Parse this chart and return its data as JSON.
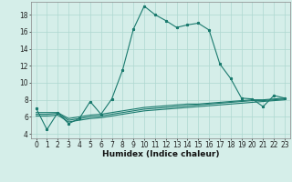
{
  "title": "",
  "xlabel": "Humidex (Indice chaleur)",
  "xlim": [
    -0.5,
    23.5
  ],
  "ylim": [
    3.5,
    19.5
  ],
  "xticks": [
    0,
    1,
    2,
    3,
    4,
    5,
    6,
    7,
    8,
    9,
    10,
    11,
    12,
    13,
    14,
    15,
    16,
    17,
    18,
    19,
    20,
    21,
    22,
    23
  ],
  "yticks": [
    4,
    6,
    8,
    10,
    12,
    14,
    16,
    18
  ],
  "bg_color": "#d5eee9",
  "grid_color": "#aed8d0",
  "line_color": "#1a7a6e",
  "line1_x": [
    0,
    1,
    2,
    3,
    4,
    5,
    6,
    7,
    8,
    9,
    10,
    11,
    12,
    13,
    14,
    15,
    16,
    17,
    18,
    19,
    20,
    21,
    22,
    23
  ],
  "line1_y": [
    7.0,
    4.5,
    6.5,
    5.2,
    5.8,
    7.8,
    6.3,
    8.1,
    11.5,
    16.3,
    19.0,
    18.0,
    17.3,
    16.5,
    16.8,
    17.0,
    16.2,
    12.2,
    10.5,
    8.2,
    8.1,
    7.2,
    8.5,
    8.2
  ],
  "line2_x": [
    0,
    1,
    2,
    3,
    4,
    5,
    6,
    7,
    8,
    9,
    10,
    11,
    12,
    13,
    14,
    15,
    16,
    17,
    18,
    19,
    20,
    21,
    22,
    23
  ],
  "line2_y": [
    6.5,
    6.5,
    6.5,
    5.8,
    6.0,
    6.2,
    6.3,
    6.5,
    6.7,
    6.9,
    7.1,
    7.2,
    7.3,
    7.4,
    7.5,
    7.5,
    7.6,
    7.7,
    7.8,
    7.9,
    8.0,
    8.0,
    8.1,
    8.2
  ],
  "line3_x": [
    0,
    1,
    2,
    3,
    4,
    5,
    6,
    7,
    8,
    9,
    10,
    11,
    12,
    13,
    14,
    15,
    16,
    17,
    18,
    19,
    20,
    21,
    22,
    23
  ],
  "line3_y": [
    6.3,
    6.3,
    6.4,
    5.6,
    5.8,
    6.0,
    6.1,
    6.3,
    6.5,
    6.7,
    6.9,
    7.0,
    7.1,
    7.2,
    7.3,
    7.4,
    7.5,
    7.6,
    7.7,
    7.8,
    7.9,
    7.9,
    8.0,
    8.1
  ],
  "line4_x": [
    0,
    1,
    2,
    3,
    4,
    5,
    6,
    7,
    8,
    9,
    10,
    11,
    12,
    13,
    14,
    15,
    16,
    17,
    18,
    19,
    20,
    21,
    22,
    23
  ],
  "line4_y": [
    6.1,
    6.1,
    6.2,
    5.4,
    5.6,
    5.8,
    5.9,
    6.1,
    6.3,
    6.5,
    6.7,
    6.8,
    6.9,
    7.0,
    7.1,
    7.2,
    7.3,
    7.4,
    7.5,
    7.6,
    7.7,
    7.8,
    7.9,
    8.0
  ],
  "marker_size": 2.0,
  "line_width": 0.8,
  "font_size_label": 6.5,
  "font_size_tick": 5.5
}
